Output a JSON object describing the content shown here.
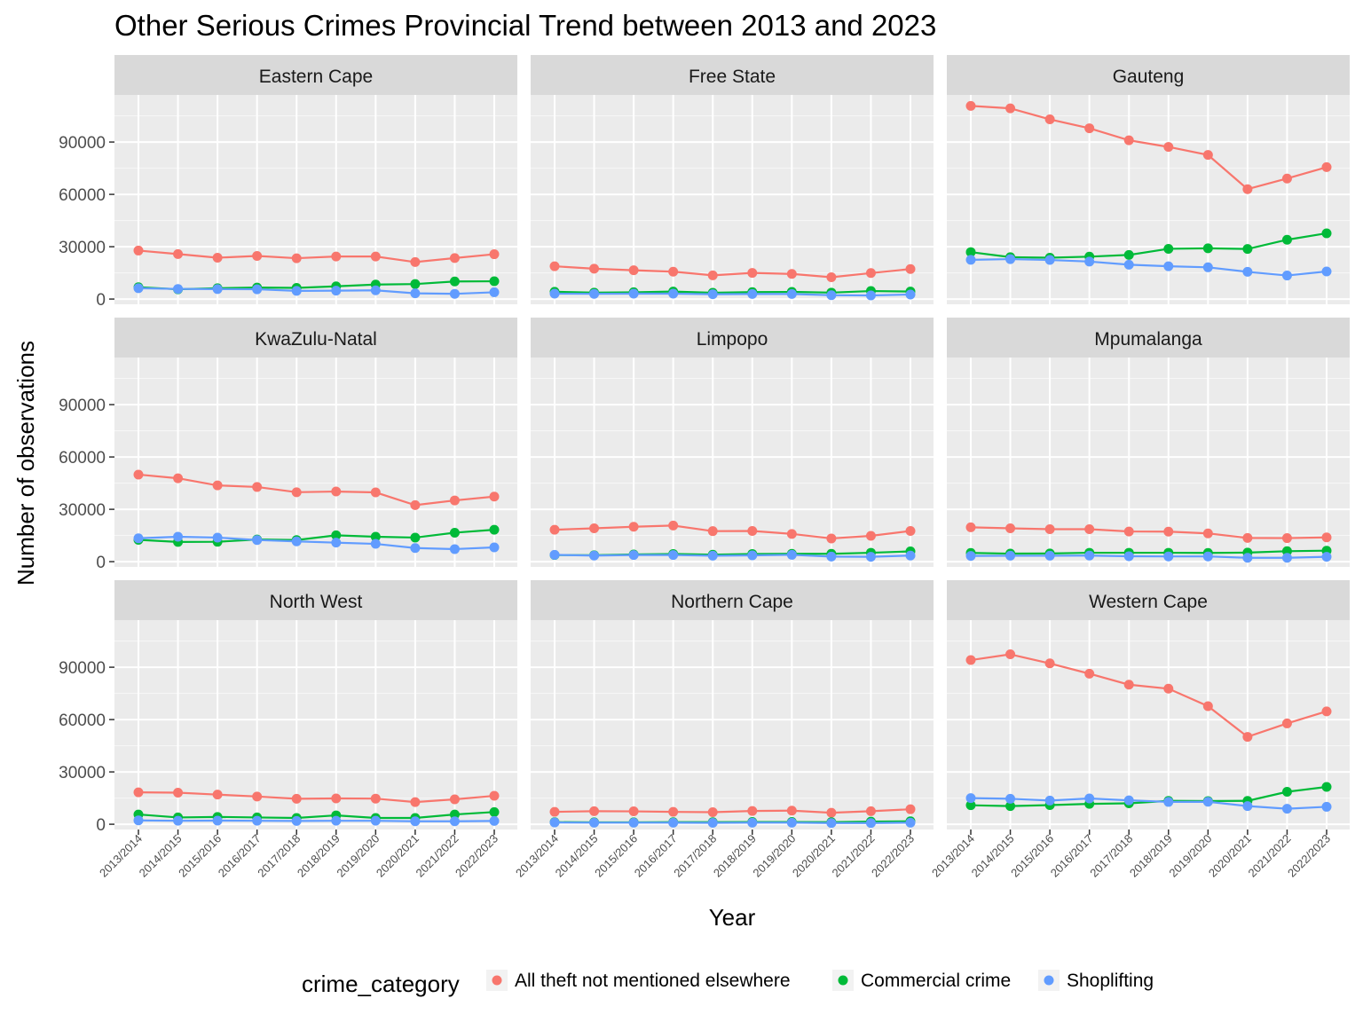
{
  "chart_data": {
    "type": "line",
    "title": "Other Serious Crimes Provincial Trend between 2013 and 2023",
    "xlabel": "Year",
    "ylabel": "Number of observations",
    "ylim": [
      -3000,
      117000
    ],
    "yticks": [
      0,
      30000,
      60000,
      90000
    ],
    "grid": true,
    "legend_position": "bottom",
    "legend_title": "crime_category",
    "categories": [
      "2013/2014",
      "2014/2015",
      "2015/2016",
      "2016/2017",
      "2017/2018",
      "2018/2019",
      "2019/2020",
      "2020/2021",
      "2021/2022",
      "2022/2023"
    ],
    "series_style": [
      {
        "name": "All theft not mentioned elsewhere",
        "color": "#F8766D"
      },
      {
        "name": "Commercial crime",
        "color": "#00BA38"
      },
      {
        "name": "Shoplifting",
        "color": "#619CFF"
      }
    ],
    "panels": [
      {
        "province": "Eastern Cape",
        "series": [
          {
            "name": "All theft not mentioned elsewhere",
            "values": [
              27800,
              25800,
              23700,
              24700,
              23400,
              24400,
              24400,
              21200,
              23500,
              25700
            ]
          },
          {
            "name": "Commercial crime",
            "values": [
              6800,
              5600,
              6200,
              6600,
              6400,
              7300,
              8300,
              8600,
              10100,
              10200
            ]
          },
          {
            "name": "Shoplifting",
            "values": [
              6200,
              5800,
              5700,
              5600,
              4700,
              4800,
              5000,
              3300,
              3000,
              3900
            ]
          }
        ]
      },
      {
        "province": "Free State",
        "series": [
          {
            "name": "All theft not mentioned elsewhere",
            "values": [
              18800,
              17400,
              16500,
              15700,
              13600,
              15000,
              14400,
              12500,
              14900,
              17200
            ]
          },
          {
            "name": "Commercial crime",
            "values": [
              4200,
              3700,
              3900,
              4300,
              3600,
              4000,
              4100,
              3700,
              4600,
              4300
            ]
          },
          {
            "name": "Shoplifting",
            "values": [
              3100,
              3000,
              3100,
              3100,
              2800,
              2900,
              2900,
              2200,
              2100,
              2600
            ]
          }
        ]
      },
      {
        "province": "Gauteng",
        "series": [
          {
            "name": "All theft not mentioned elsewhere",
            "values": [
              110700,
              109300,
              103000,
              97900,
              91000,
              87200,
              82600,
              63000,
              69100,
              75600
            ]
          },
          {
            "name": "Commercial crime",
            "values": [
              26900,
              24000,
              23700,
              24300,
              25300,
              28800,
              29100,
              28700,
              34000,
              37700
            ]
          },
          {
            "name": "Shoplifting",
            "values": [
              22500,
              22900,
              22400,
              21500,
              19700,
              18800,
              18200,
              15600,
              13500,
              15800
            ]
          }
        ]
      },
      {
        "province": "KwaZulu-Natal",
        "series": [
          {
            "name": "All theft not mentioned elsewhere",
            "values": [
              49900,
              47800,
              43700,
              42800,
              39800,
              40200,
              39700,
              32400,
              35100,
              37300
            ]
          },
          {
            "name": "Commercial crime",
            "values": [
              12500,
              11300,
              11400,
              12700,
              12400,
              15100,
              14300,
              13800,
              16600,
              18300
            ]
          },
          {
            "name": "Shoplifting",
            "values": [
              13400,
              14300,
              13800,
              12400,
              11600,
              10900,
              10200,
              7800,
              7200,
              8200
            ]
          }
        ]
      },
      {
        "province": "Limpopo",
        "series": [
          {
            "name": "All theft not mentioned elsewhere",
            "values": [
              18300,
              19100,
              20000,
              20700,
              17500,
              17600,
              15900,
              13300,
              14800,
              17600
            ]
          },
          {
            "name": "Commercial crime",
            "values": [
              3800,
              3700,
              4100,
              4400,
              4000,
              4400,
              4500,
              4500,
              5100,
              5900
            ]
          },
          {
            "name": "Shoplifting",
            "values": [
              3900,
              3500,
              3800,
              3800,
              3400,
              3600,
              3900,
              2900,
              2800,
              3500
            ]
          }
        ]
      },
      {
        "province": "Mpumalanga",
        "series": [
          {
            "name": "All theft not mentioned elsewhere",
            "values": [
              19700,
              19100,
              18600,
              18600,
              17300,
              17200,
              16200,
              13600,
              13500,
              13900
            ]
          },
          {
            "name": "Commercial crime",
            "values": [
              5000,
              4600,
              4700,
              5100,
              5100,
              5100,
              5000,
              5200,
              6000,
              6300
            ]
          },
          {
            "name": "Shoplifting",
            "values": [
              3300,
              3400,
              3400,
              3500,
              3100,
              3000,
              3000,
              2200,
              2200,
              2800
            ]
          }
        ]
      },
      {
        "province": "North West",
        "series": [
          {
            "name": "All theft not mentioned elsewhere",
            "values": [
              18300,
              18100,
              17000,
              15900,
              14600,
              14800,
              14700,
              12700,
              14300,
              16300
            ]
          },
          {
            "name": "Commercial crime",
            "values": [
              5600,
              3900,
              4200,
              3900,
              3600,
              5100,
              3600,
              3600,
              5600,
              7000
            ]
          },
          {
            "name": "Shoplifting",
            "values": [
              2200,
              2000,
              2100,
              2000,
              1900,
              2000,
              2000,
              1700,
              1700,
              1900
            ]
          }
        ]
      },
      {
        "province": "Northern Cape",
        "series": [
          {
            "name": "All theft not mentioned elsewhere",
            "values": [
              7100,
              7500,
              7400,
              7100,
              6900,
              7600,
              7800,
              6600,
              7500,
              8600
            ]
          },
          {
            "name": "Commercial crime",
            "values": [
              1200,
              1100,
              1100,
              1200,
              1200,
              1300,
              1300,
              1200,
              1500,
              1700
            ]
          },
          {
            "name": "Shoplifting",
            "values": [
              1000,
              900,
              900,
              900,
              800,
              900,
              900,
              700,
              700,
              900
            ]
          }
        ]
      },
      {
        "province": "Western Cape",
        "series": [
          {
            "name": "All theft not mentioned elsewhere",
            "values": [
              94100,
              97400,
              92200,
              86300,
              80000,
              77700,
              67700,
              50100,
              57800,
              64700
            ]
          },
          {
            "name": "Commercial crime",
            "values": [
              10900,
              10400,
              11000,
              11700,
              12000,
              13400,
              13300,
              13400,
              18600,
              21400
            ]
          },
          {
            "name": "Shoplifting",
            "values": [
              15000,
              14600,
              13600,
              14800,
              13700,
              12800,
              12900,
              10400,
              8900,
              10000
            ]
          }
        ]
      }
    ]
  }
}
